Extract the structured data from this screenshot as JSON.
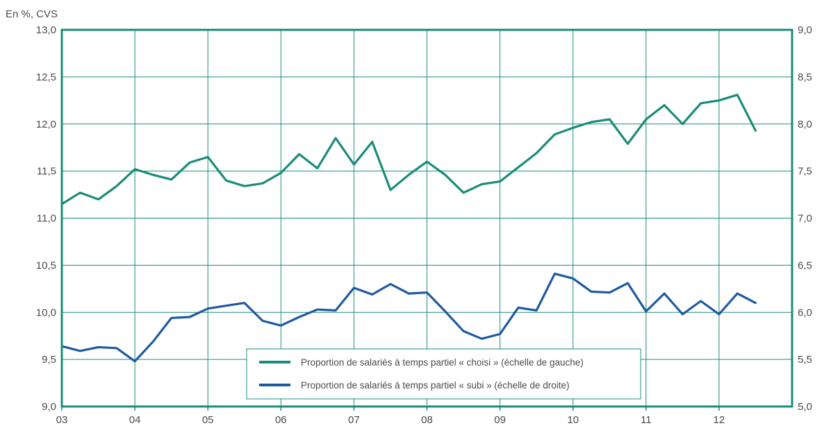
{
  "chart_data": {
    "type": "line",
    "unit_label": "En %, CVS",
    "x_tick_labels": [
      "03",
      "04",
      "05",
      "06",
      "07",
      "08",
      "09",
      "10",
      "11",
      "12"
    ],
    "x_range": [
      2003,
      2013
    ],
    "y_left": {
      "range": [
        9.0,
        13.0
      ],
      "ticks": [
        "9,0",
        "9,5",
        "10,0",
        "10,5",
        "11,0",
        "11,5",
        "12,0",
        "12,5",
        "13,0"
      ]
    },
    "y_right": {
      "range": [
        5.0,
        9.0
      ],
      "ticks": [
        "5,0",
        "5,5",
        "6,0",
        "6,5",
        "7,0",
        "7,5",
        "8,0",
        "8,5",
        "9,0"
      ]
    },
    "grid": true,
    "legend_position": "bottom-center",
    "series": [
      {
        "name": "Proportion de salariés à temps partiel « choisi » (échelle de gauche)",
        "axis": "left",
        "color": "#1a8c78",
        "x": [
          2003.0,
          2003.25,
          2003.5,
          2003.75,
          2004.0,
          2004.25,
          2004.5,
          2004.75,
          2005.0,
          2005.25,
          2005.5,
          2005.75,
          2006.0,
          2006.25,
          2006.5,
          2006.75,
          2007.0,
          2007.25,
          2007.5,
          2007.75,
          2008.0,
          2008.25,
          2008.5,
          2008.75,
          2009.0,
          2009.25,
          2009.5,
          2009.75,
          2010.0,
          2010.25,
          2010.5,
          2010.75,
          2011.0,
          2011.25,
          2011.5,
          2011.75,
          2012.0,
          2012.25,
          2012.5
        ],
        "y": [
          11.15,
          11.27,
          11.2,
          11.34,
          11.52,
          11.46,
          11.41,
          11.59,
          11.65,
          11.4,
          11.34,
          11.37,
          11.48,
          11.68,
          11.53,
          11.85,
          11.57,
          11.81,
          11.3,
          11.46,
          11.6,
          11.46,
          11.27,
          11.36,
          11.39,
          11.54,
          11.69,
          11.89,
          11.96,
          12.02,
          12.05,
          11.79,
          12.05,
          12.2,
          12.0,
          12.22,
          12.25,
          12.31,
          11.93
        ]
      },
      {
        "name": "Proportion de salariés à temps partiel « subi » (échelle de droite)",
        "axis": "right",
        "color": "#1e5aa0",
        "x": [
          2003.0,
          2003.25,
          2003.5,
          2003.75,
          2004.0,
          2004.25,
          2004.5,
          2004.75,
          2005.0,
          2005.25,
          2005.5,
          2005.75,
          2006.0,
          2006.25,
          2006.5,
          2006.75,
          2007.0,
          2007.25,
          2007.5,
          2007.75,
          2008.0,
          2008.25,
          2008.5,
          2008.75,
          2009.0,
          2009.25,
          2009.5,
          2009.75,
          2010.0,
          2010.25,
          2010.5,
          2010.75,
          2011.0,
          2011.25,
          2011.5,
          2011.75,
          2012.0,
          2012.25,
          2012.5
        ],
        "y": [
          5.64,
          5.59,
          5.63,
          5.62,
          5.48,
          5.69,
          5.94,
          5.95,
          6.04,
          6.07,
          6.1,
          5.91,
          5.86,
          5.95,
          6.03,
          6.02,
          6.26,
          6.19,
          6.3,
          6.2,
          6.21,
          6.01,
          5.8,
          5.72,
          5.77,
          6.05,
          6.02,
          6.41,
          6.36,
          6.22,
          6.21,
          6.31,
          6.01,
          6.2,
          5.98,
          6.12,
          5.98,
          6.2,
          6.1
        ]
      }
    ]
  }
}
